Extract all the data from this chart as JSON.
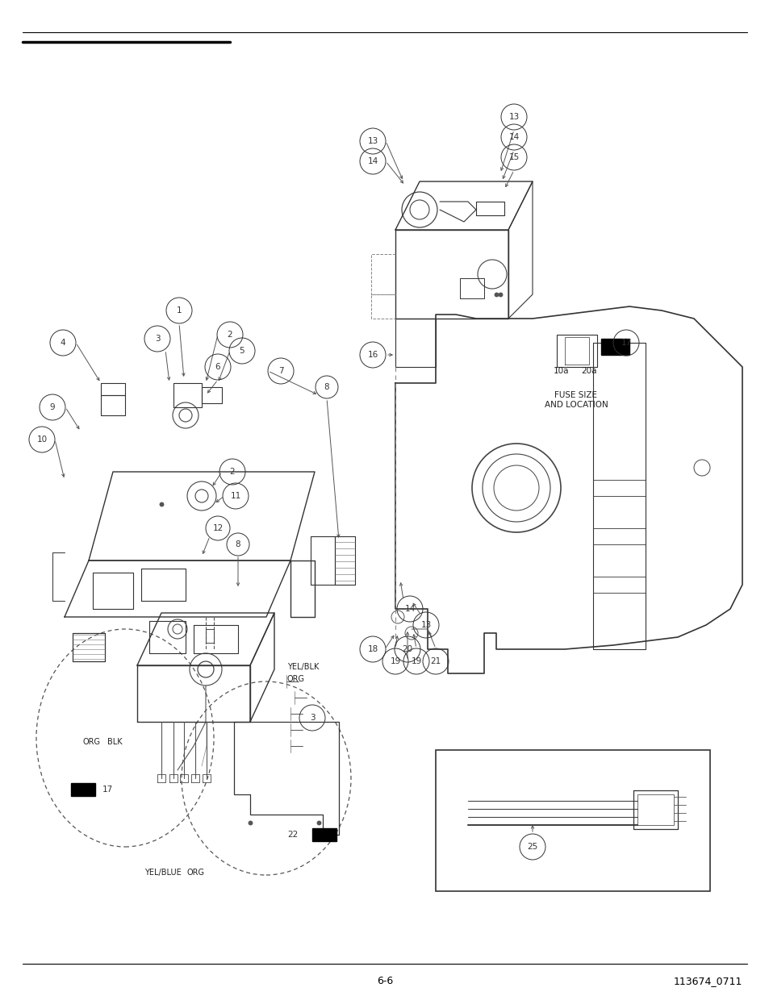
{
  "page_number": "6-6",
  "doc_number": "113674_0711",
  "bg_color": "#ffffff",
  "line_color": "#000000",
  "footer_font_size": 9,
  "fuse_10a": "10a",
  "fuse_20a": "20a",
  "fuse_label": "FUSE SIZE\nAND LOCATION"
}
